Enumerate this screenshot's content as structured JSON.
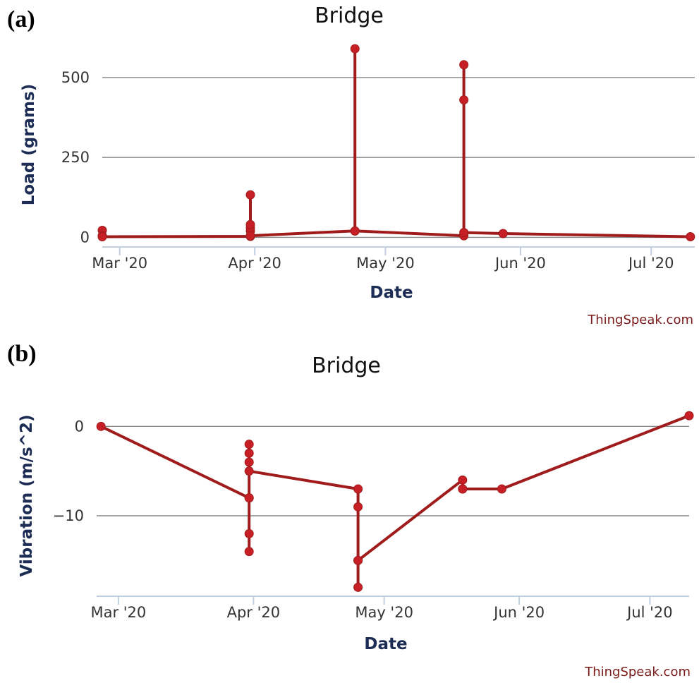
{
  "colors": {
    "series": "#a01c1c",
    "marker": "#c62026",
    "axis_title": "#1c2c54",
    "credit": "#7a1a1a"
  },
  "chart_data": [
    {
      "panel_label": "(a)",
      "type": "line",
      "title": "Bridge",
      "xlabel": "Date",
      "ylabel": "Load (grams)",
      "credit": "ThingSpeak.com",
      "x_unit": "days since 2020-03-01",
      "xlim": [
        -4,
        132
      ],
      "ylim": [
        -30,
        610
      ],
      "yticks": [
        0,
        250,
        500
      ],
      "ytick_labels": [
        "0",
        "250",
        "500"
      ],
      "xticks": [
        0,
        31,
        61,
        92,
        122
      ],
      "xtick_labels": [
        "Mar '20",
        "Apr '20",
        "May '20",
        "Jun '20",
        "Jul '20"
      ],
      "grid": true,
      "series": [
        {
          "name": "Load",
          "x": [
            -4,
            -4,
            -4,
            30,
            30,
            30,
            30,
            30,
            30,
            54,
            54,
            54,
            79,
            79,
            79,
            79,
            88,
            131
          ],
          "y": [
            22,
            5,
            2,
            3,
            20,
            30,
            40,
            133,
            5,
            20,
            590,
            20,
            5,
            430,
            540,
            15,
            12,
            2
          ]
        }
      ]
    },
    {
      "panel_label": "(b)",
      "type": "line",
      "title": "Bridge",
      "xlabel": "Date",
      "ylabel": "Vibration (m/s^2)",
      "credit": "ThingSpeak.com",
      "x_unit": "days since 2020-03-01",
      "xlim": [
        -5,
        131
      ],
      "ylim": [
        -19,
        3.5
      ],
      "yticks": [
        -10,
        0
      ],
      "ytick_labels": [
        "−10",
        "0"
      ],
      "xticks": [
        0,
        31,
        61,
        92,
        122
      ],
      "xtick_labels": [
        "Mar '20",
        "Apr '20",
        "May '20",
        "Jun '20",
        "Jul '20"
      ],
      "grid": true,
      "series": [
        {
          "name": "Vibration",
          "x": [
            -4,
            30,
            30,
            30,
            30,
            30,
            30,
            30,
            30,
            55,
            55,
            55,
            55,
            55,
            79,
            79,
            79,
            88,
            131
          ],
          "y": [
            0,
            -8,
            -14,
            -12,
            -8,
            -2,
            -3,
            -4,
            -5,
            -7,
            -9,
            -15,
            -18,
            -15,
            -6,
            -7,
            -7,
            -7,
            1.2
          ]
        }
      ]
    }
  ]
}
